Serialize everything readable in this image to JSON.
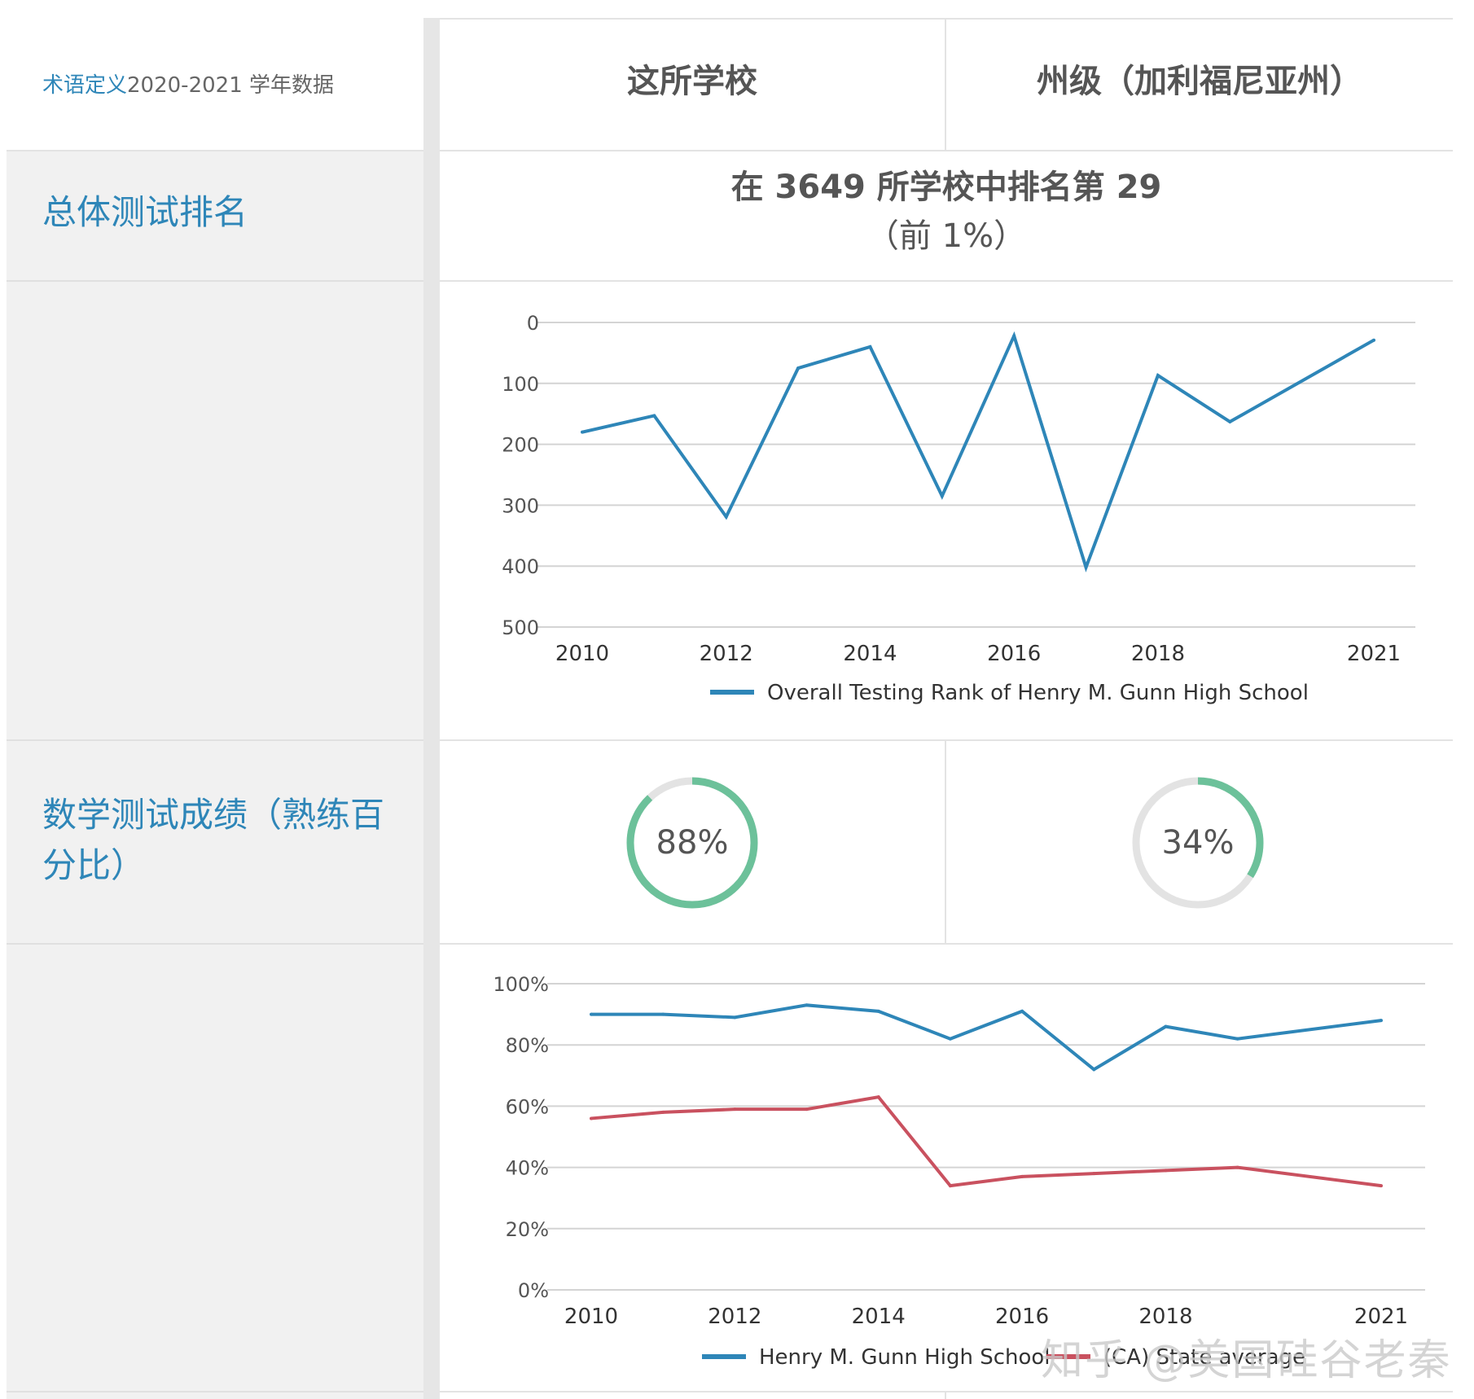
{
  "header": {
    "definitions_link": "术语定义",
    "definitions_rest": "2020-2021 学年数据",
    "col_school": "这所学校",
    "col_state": "州级（加利福尼亚州）"
  },
  "rows": {
    "overall_label": "总体测试排名",
    "math_label": "数学测试成绩（熟练百分比）"
  },
  "rank": {
    "main": "在 3649 所学校中排名第 29",
    "sub": "（前 1%）"
  },
  "math_scores": {
    "school_label": "88%",
    "school_value": 0.88,
    "state_label": "34%",
    "state_value": 0.34,
    "ring_color": "#6cc19a",
    "ring_track_color": "#e3e3e3"
  },
  "watermark": "知乎 @美国硅谷老秦",
  "chart_data": [
    {
      "type": "line",
      "x": [
        2010,
        2011,
        2012,
        2013,
        2014,
        2015,
        2016,
        2017,
        2018,
        2019,
        2021
      ],
      "xticks": [
        "2010",
        "2012",
        "2014",
        "2016",
        "2018",
        "2021"
      ],
      "ylim": [
        0,
        500
      ],
      "y_inverted": true,
      "yticks": [
        "0",
        "100",
        "200",
        "300",
        "400",
        "500"
      ],
      "series": [
        {
          "name": "Overall Testing Rank of Henry M. Gunn High School",
          "values": [
            180,
            153,
            319,
            75,
            40,
            285,
            22,
            402,
            87,
            163,
            29
          ],
          "color": "#2e86b8"
        }
      ],
      "grid": true,
      "legend": "bottom"
    },
    {
      "type": "line",
      "x": [
        2010,
        2011,
        2012,
        2013,
        2014,
        2015,
        2016,
        2017,
        2018,
        2019,
        2021
      ],
      "xticks": [
        "2010",
        "2012",
        "2014",
        "2016",
        "2018",
        "2021"
      ],
      "ylim": [
        0,
        100
      ],
      "yticks": [
        "0%",
        "20%",
        "40%",
        "60%",
        "80%",
        "100%"
      ],
      "series": [
        {
          "name": "Henry M. Gunn High School",
          "values": [
            90,
            90,
            89,
            93,
            91,
            82,
            91,
            72,
            86,
            82,
            88
          ],
          "color": "#2e86b8"
        },
        {
          "name": "(CA) State average",
          "values": [
            56,
            58,
            59,
            59,
            63,
            34,
            37,
            38,
            39,
            40,
            34
          ],
          "color": "#c9515f"
        }
      ],
      "grid": true,
      "legend": "bottom"
    }
  ]
}
